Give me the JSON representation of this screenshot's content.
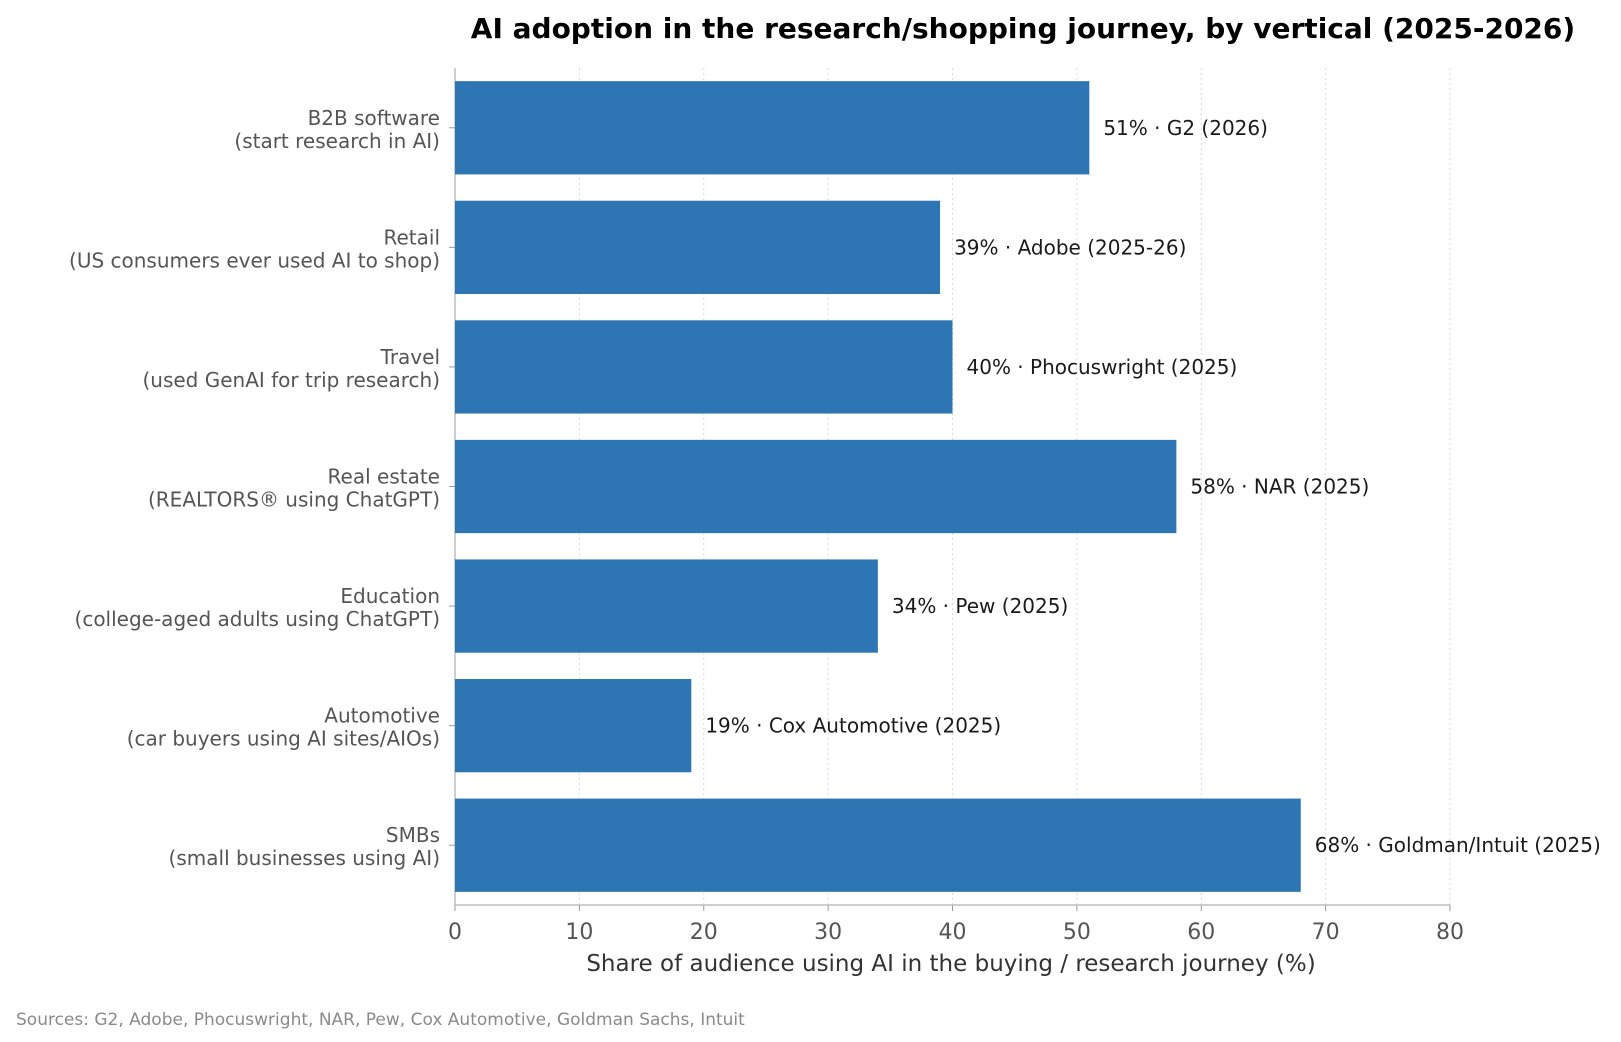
{
  "chart_data": {
    "type": "bar",
    "orientation": "horizontal",
    "title": "AI adoption in the research/shopping journey, by vertical (2025-2026)",
    "xlabel": "Share of audience using AI in the buying / research journey (%)",
    "ylabel": "",
    "xlim": [
      0,
      80
    ],
    "xticks": [
      "0",
      "10",
      "20",
      "30",
      "40",
      "50",
      "60",
      "70",
      "80"
    ],
    "grid": "vertical dotted",
    "categories": [
      {
        "line1": "B2B software",
        "line2": "(start research in AI)"
      },
      {
        "line1": "Retail",
        "line2": "(US consumers ever used AI to shop)"
      },
      {
        "line1": "Travel",
        "line2": "(used GenAI for trip research)"
      },
      {
        "line1": "Real estate",
        "line2": "(REALTORS® using ChatGPT)"
      },
      {
        "line1": "Education",
        "line2": "(college-aged adults using ChatGPT)"
      },
      {
        "line1": "Automotive",
        "line2": "(car buyers using AI sites/AIOs)"
      },
      {
        "line1": "SMBs",
        "line2": "(small businesses using AI)"
      }
    ],
    "values": [
      51,
      39,
      40,
      58,
      34,
      19,
      68
    ],
    "data_labels": [
      "51% · G2 (2026)",
      "39% · Adobe (2025-26)",
      "40% · Phocuswright (2025)",
      "58% · NAR (2025)",
      "34% · Pew (2025)",
      "19% · Cox Automotive (2025)",
      "68% · Goldman/Intuit (2025)"
    ],
    "bar_color": "#2e75b4",
    "source_note": "Sources: G2, Adobe, Phocuswright, NAR, Pew, Cox Automotive, Goldman Sachs, Intuit"
  }
}
